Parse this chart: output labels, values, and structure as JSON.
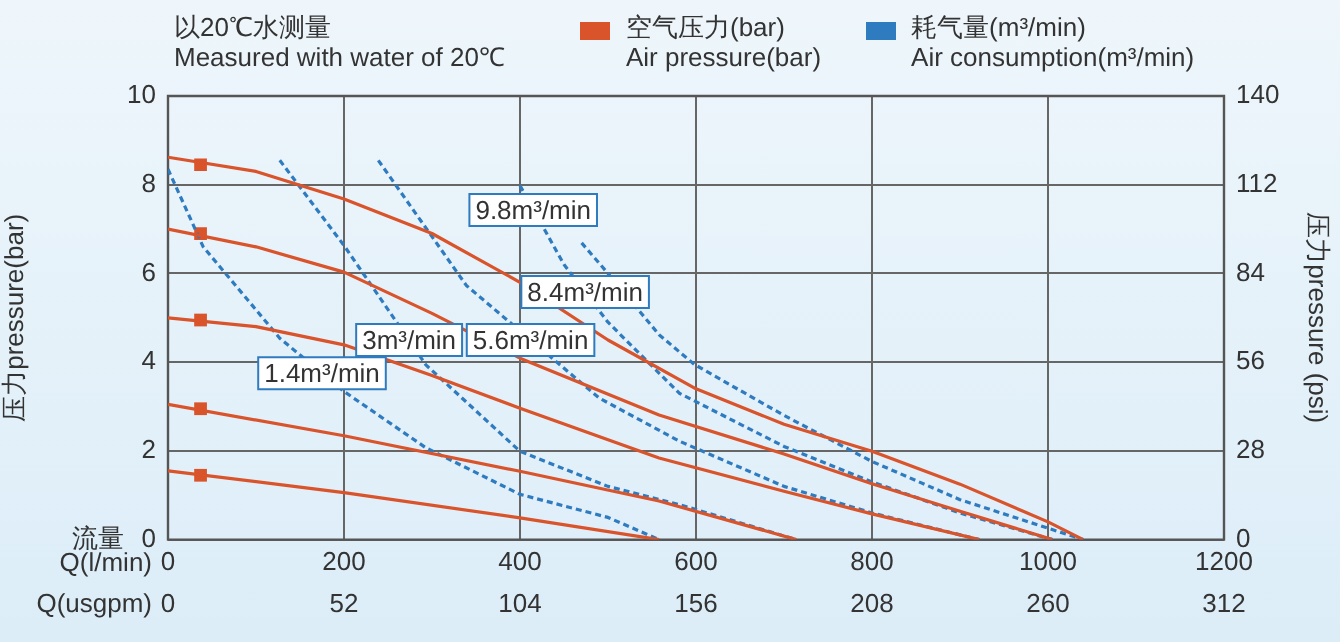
{
  "chart_data": {
    "type": "line",
    "subtitle": "以20℃水测量\nMeasured with water of 20℃",
    "xlabel": "Q(l/min)",
    "x2label": "Q(usgpm)",
    "ylabel": "压力pressure(bar)",
    "y2label": "压力pressure (psi)",
    "xlim": [
      0,
      1200
    ],
    "xticks": [
      0,
      200,
      400,
      600,
      800,
      1000,
      1200
    ],
    "x2lim": [
      0,
      312
    ],
    "x2ticks": [
      0,
      52,
      104,
      156,
      208,
      260,
      312
    ],
    "ylim": [
      0,
      10
    ],
    "yticks": [
      0,
      2,
      4,
      6,
      8,
      10
    ],
    "y2lim": [
      0,
      140
    ],
    "y2ticks": [
      0,
      28,
      56,
      84,
      112,
      140
    ],
    "grid": true,
    "legend": "top",
    "marker": "none",
    "line_style": "solid",
    "annotations": [
      "流量",
      {
        "text": "1.4m³/min",
        "x": 175,
        "y": 3.75
      },
      {
        "text": "3m³/min",
        "x": 274,
        "y": 4.5
      },
      {
        "text": "5.6m³/min",
        "x": 412,
        "y": 4.5
      },
      {
        "text": "8.4m³/min",
        "x": 474,
        "y": 5.58
      },
      {
        "text": "9.8m³/min",
        "x": 415,
        "y": 7.43
      }
    ],
    "series": [
      {
        "name": "空气压力(bar)\nAir pressure(bar)",
        "color": "#d9532b",
        "x": [
          0,
          100,
          200,
          300,
          400,
          500,
          600,
          700,
          800,
          900,
          1000,
          1040
        ],
        "values": [
          8.62,
          8.3,
          7.68,
          6.9,
          5.8,
          4.5,
          3.4,
          2.6,
          1.99,
          1.25,
          0.4,
          0
        ]
      },
      {
        "color": "#d9532b",
        "x": [
          0,
          100,
          200,
          300,
          400,
          558,
          700,
          800,
          900,
          1005
        ],
        "values": [
          7.0,
          6.6,
          6.03,
          5.1,
          4.09,
          2.81,
          1.93,
          1.26,
          0.64,
          0
        ]
      },
      {
        "color": "#d9532b",
        "x": [
          0,
          100,
          200,
          300,
          400,
          558,
          700,
          800,
          922
        ],
        "values": [
          5.0,
          4.8,
          4.39,
          3.7,
          2.96,
          1.84,
          1.09,
          0.58,
          0
        ]
      },
      {
        "color": "#d9532b",
        "x": [
          0,
          200,
          400,
          558,
          714
        ],
        "values": [
          3.05,
          2.34,
          1.54,
          0.87,
          0
        ]
      },
      {
        "color": "#d9532b",
        "x": [
          0,
          200,
          400,
          558
        ],
        "values": [
          1.55,
          1.06,
          0.49,
          0
        ]
      },
      {
        "name": "耗气量(m³/min)\nAir consumption(m³/min)",
        "color": "#2f7bbf",
        "line_style": "dashed",
        "x": [
          0,
          40,
          127,
          200,
          293,
          400,
          500,
          558
        ],
        "values": [
          8.35,
          6.6,
          4.54,
          3.34,
          2.07,
          1.02,
          0.5,
          0
        ]
      },
      {
        "color": "#2f7bbf",
        "line_style": "dashed",
        "x": [
          127,
          200,
          293,
          400,
          500,
          581,
          714
        ],
        "values": [
          8.55,
          6.63,
          3.94,
          1.99,
          1.2,
          0.79,
          0
        ]
      },
      {
        "color": "#2f7bbf",
        "line_style": "dashed",
        "x": [
          239,
          339,
          490,
          581,
          700,
          800,
          922
        ],
        "values": [
          8.55,
          5.73,
          3.19,
          2.22,
          1.2,
          0.6,
          0
        ]
      },
      {
        "color": "#2f7bbf",
        "line_style": "dashed",
        "x": [
          400,
          450,
          500,
          581,
          700,
          800,
          900,
          1005
        ],
        "values": [
          7.98,
          6.2,
          4.9,
          3.3,
          2.1,
          1.3,
          0.6,
          0
        ]
      },
      {
        "color": "#2f7bbf",
        "line_style": "dashed",
        "x": [
          470,
          500,
          558,
          598,
          700,
          799,
          900,
          1040
        ],
        "values": [
          6.69,
          6.0,
          4.62,
          3.95,
          2.8,
          1.77,
          0.9,
          0
        ]
      },
      {
        "type": "scatter",
        "color": "#d9532b",
        "marker": "square",
        "x": [
          37,
          37,
          37,
          37,
          37
        ],
        "values": [
          8.45,
          6.9,
          4.95,
          2.95,
          1.45
        ]
      }
    ]
  }
}
